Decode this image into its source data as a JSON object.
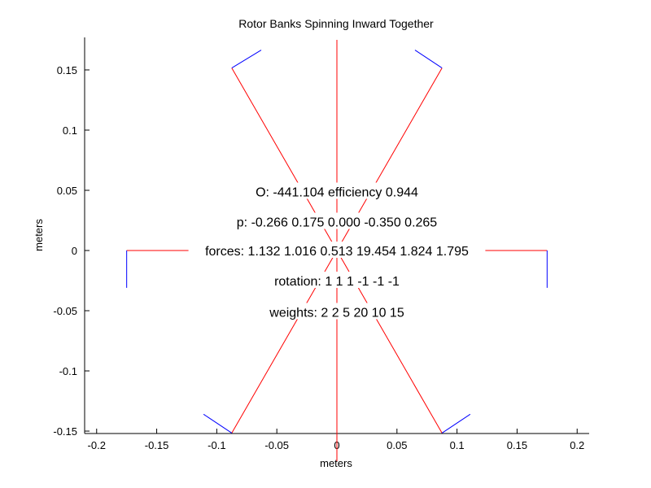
{
  "chart_data": {
    "type": "line",
    "title": "Rotor Banks Spinning Inward Together",
    "xlabel": "meters",
    "ylabel": "meters",
    "xlim": [
      -0.21,
      0.21
    ],
    "ylim": [
      -0.152,
      0.177
    ],
    "xticks": [
      -0.2,
      -0.15,
      -0.1,
      -0.05,
      0,
      0.05,
      0.1,
      0.15,
      0.2
    ],
    "xtick_labels": [
      "-0.2",
      "-0.15",
      "-0.1",
      "-0.05",
      "0",
      "0.05",
      "0.1",
      "0.15",
      "0.2"
    ],
    "yticks": [
      -0.15,
      -0.1,
      -0.05,
      0,
      0.05,
      0.1,
      0.15
    ],
    "ytick_labels": [
      "-0.15",
      "-0.1",
      "-0.05",
      "0",
      "0.05",
      "0.1",
      "0.15"
    ],
    "grid": false,
    "colors": {
      "arm": "#ff0000",
      "rotor": "#0000ff"
    },
    "series": [
      {
        "color": "#ff0000",
        "x": [
          0,
          0
        ],
        "y": [
          0,
          0.175
        ]
      },
      {
        "color": "#ff0000",
        "x": [
          0,
          0.0875
        ],
        "y": [
          0,
          0.1516
        ]
      },
      {
        "color": "#ff0000",
        "x": [
          0,
          0.0875
        ],
        "y": [
          0,
          -0.1516
        ]
      },
      {
        "color": "#ff0000",
        "x": [
          0,
          0
        ],
        "y": [
          0,
          -0.175
        ]
      },
      {
        "color": "#ff0000",
        "x": [
          0,
          -0.0875
        ],
        "y": [
          0,
          -0.1516
        ]
      },
      {
        "color": "#ff0000",
        "x": [
          0,
          -0.0875
        ],
        "y": [
          0,
          0.1516
        ]
      },
      {
        "color": "#ff0000",
        "x": [
          0,
          0.175
        ],
        "y": [
          0,
          0
        ]
      },
      {
        "color": "#ff0000",
        "x": [
          0,
          -0.175
        ],
        "y": [
          0,
          0
        ]
      },
      {
        "color": "#0000ff",
        "x": [
          0.0875,
          0.065
        ],
        "y": [
          0.1516,
          0.1665
        ]
      },
      {
        "color": "#0000ff",
        "x": [
          -0.0875,
          -0.063
        ],
        "y": [
          0.1516,
          0.1665
        ]
      },
      {
        "color": "#0000ff",
        "x": [
          0.175,
          0.175
        ],
        "y": [
          0,
          -0.031
        ]
      },
      {
        "color": "#0000ff",
        "x": [
          -0.175,
          -0.175
        ],
        "y": [
          0,
          -0.031
        ]
      },
      {
        "color": "#0000ff",
        "x": [
          0.0875,
          0.111
        ],
        "y": [
          -0.1516,
          -0.136
        ]
      },
      {
        "color": "#0000ff",
        "x": [
          -0.0875,
          -0.111
        ],
        "y": [
          -0.1516,
          -0.136
        ]
      }
    ],
    "annotations": [
      {
        "text": "O: -441.104     efficiency 0.944",
        "x": 0,
        "y": 0.049
      },
      {
        "text": "p: -0.266 0.175 0.000 -0.350 0.265",
        "x": 0,
        "y": 0.024
      },
      {
        "text": "forces: 1.132 1.016 0.513 19.454 1.824 1.795",
        "x": 0,
        "y": 0
      },
      {
        "text": "rotation: 1 1 1 -1 -1 -1",
        "x": 0,
        "y": -0.025
      },
      {
        "text": "weights: 2 2 5 20 10 15",
        "x": 0,
        "y": -0.051
      }
    ]
  }
}
